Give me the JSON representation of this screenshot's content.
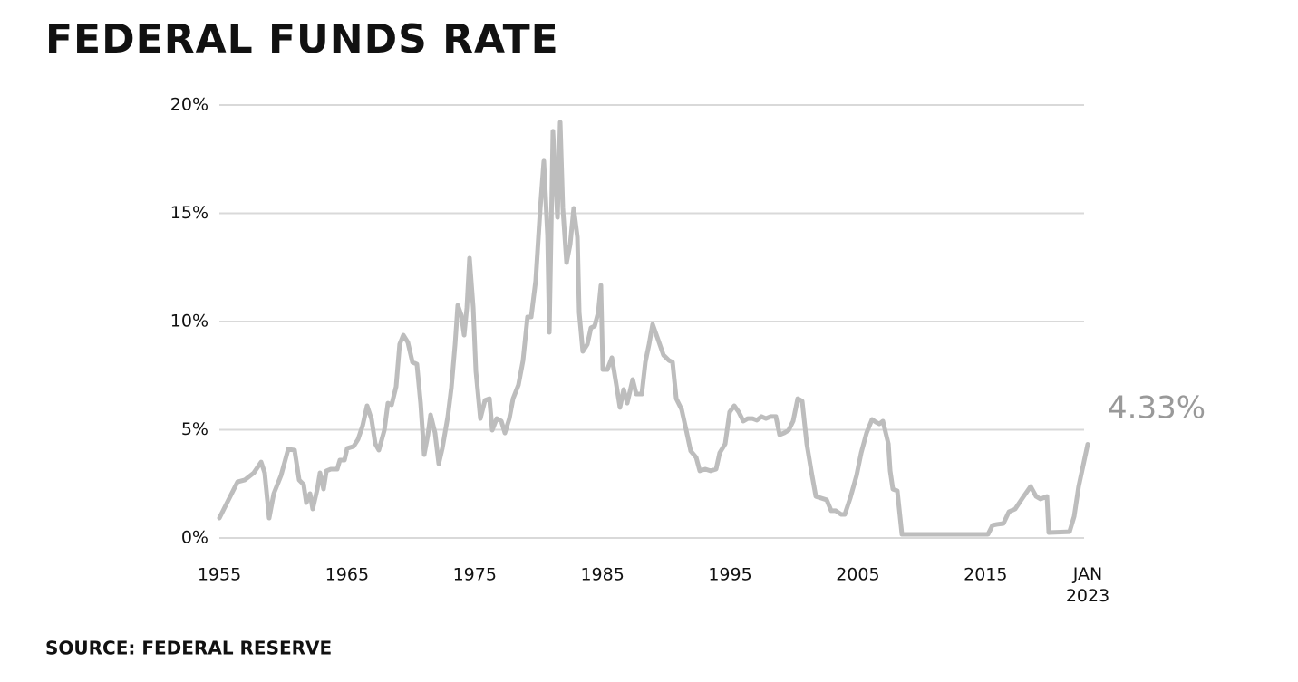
{
  "chart_data": {
    "type": "line",
    "title": "FEDERAL FUNDS RATE",
    "source": "SOURCE: FEDERAL RESERVE",
    "annotation": "4.33%",
    "xlim": [
      1955,
      2023
    ],
    "xticks": [
      1955,
      1965,
      1975,
      1985,
      1995,
      2005,
      2015,
      {
        "value": 2023,
        "label": "JAN 2023"
      }
    ],
    "ylim": [
      0,
      20
    ],
    "yticks": [
      {
        "value": 0,
        "label": "0%"
      },
      {
        "value": 5,
        "label": "5%"
      },
      {
        "value": 10,
        "label": "10%"
      },
      {
        "value": 15,
        "label": "15%"
      },
      {
        "value": 20,
        "label": "20%"
      }
    ],
    "grid": true,
    "color": "#bdbdbd",
    "x": [
      1955,
      1956.42,
      1956.99,
      1957.7,
      1958.27,
      1958.55,
      1958.9,
      1959.26,
      1959.83,
      1960.39,
      1960.89,
      1961.25,
      1961.6,
      1961.81,
      1962.1,
      1962.31,
      1962.67,
      1962.88,
      1963.16,
      1963.38,
      1963.73,
      1964.23,
      1964.44,
      1964.8,
      1965.01,
      1965.51,
      1965.86,
      1966.22,
      1966.57,
      1966.92,
      1967.21,
      1967.49,
      1967.92,
      1968.2,
      1968.49,
      1968.84,
      1969.12,
      1969.41,
      1969.76,
      1970.12,
      1970.47,
      1970.76,
      1971.04,
      1971.33,
      1971.54,
      1971.89,
      1972.18,
      1972.46,
      1972.89,
      1973.17,
      1973.46,
      1973.67,
      1973.95,
      1974.17,
      1974.38,
      1974.59,
      1974.88,
      1975.09,
      1975.44,
      1975.8,
      1976.15,
      1976.37,
      1976.72,
      1977.08,
      1977.36,
      1977.71,
      1978,
      1978.42,
      1978.78,
      1979.13,
      1979.42,
      1979.77,
      1980.13,
      1980.41,
      1980.7,
      1980.84,
      1981.12,
      1981.48,
      1981.69,
      1981.9,
      1982.19,
      1982.47,
      1982.75,
      1983.04,
      1983.18,
      1983.46,
      1983.82,
      1984.1,
      1984.39,
      1984.67,
      1984.88,
      1985.03,
      1985.38,
      1985.74,
      1986.09,
      1986.37,
      1986.66,
      1986.94,
      1987.37,
      1987.65,
      1988.08,
      1988.36,
      1988.65,
      1988.93,
      1989.36,
      1989.78,
      1990.21,
      1990.49,
      1990.78,
      1991.2,
      1991.56,
      1991.91,
      1992.34,
      1992.62,
      1993.05,
      1993.47,
      1993.9,
      1994.18,
      1994.61,
      1994.96,
      1995.32,
      1995.67,
      1996.03,
      1996.38,
      1996.74,
      1997.09,
      1997.45,
      1997.8,
      1998.16,
      1998.58,
      1998.87,
      1999.22,
      1999.58,
      1999.93,
      2000.29,
      2000.64,
      2001,
      2001.35,
      2001.71,
      2002.13,
      2002.56,
      2002.91,
      2003.27,
      2003.69,
      2003.98,
      2004.4,
      2004.9,
      2005.26,
      2005.68,
      2006.11,
      2006.39,
      2006.68,
      2006.96,
      2007.39,
      2007.53,
      2007.74,
      2008.09,
      2008.45,
      2015.19,
      2015.55,
      2015.9,
      2016.4,
      2016.83,
      2017.32,
      2017.89,
      2018.53,
      2018.96,
      2019.31,
      2019.81,
      2019.95,
      2021.58,
      2021.94,
      2022.29,
      2023
    ],
    "values": [
      0.92,
      2.59,
      2.68,
      3.01,
      3.51,
      3.01,
      0.92,
      2.05,
      2.89,
      4.1,
      4.06,
      2.68,
      2.47,
      1.63,
      2.05,
      1.34,
      2.26,
      3.01,
      2.26,
      3.1,
      3.18,
      3.18,
      3.6,
      3.6,
      4.14,
      4.23,
      4.56,
      5.19,
      6.11,
      5.48,
      4.35,
      4.06,
      4.98,
      6.23,
      6.15,
      6.99,
      8.95,
      9.37,
      9.04,
      8.12,
      8.03,
      6.23,
      3.85,
      4.77,
      5.69,
      4.85,
      3.43,
      4.14,
      5.61,
      6.95,
      8.95,
      10.75,
      10.29,
      9.37,
      10.63,
      12.93,
      10.63,
      7.7,
      5.52,
      6.36,
      6.44,
      4.98,
      5.52,
      5.4,
      4.85,
      5.52,
      6.44,
      7.07,
      8.2,
      10.21,
      10.21,
      11.88,
      15.23,
      17.41,
      13.97,
      9.5,
      18.79,
      14.81,
      19.21,
      15.23,
      12.72,
      13.56,
      15.23,
      13.89,
      10.42,
      8.62,
      8.95,
      9.71,
      9.79,
      10.42,
      11.67,
      7.78,
      7.78,
      8.33,
      7.07,
      6.03,
      6.86,
      6.23,
      7.32,
      6.65,
      6.65,
      8.12,
      8.95,
      9.87,
      9.16,
      8.45,
      8.2,
      8.12,
      6.44,
      5.94,
      4.98,
      4.02,
      3.72,
      3.1,
      3.18,
      3.1,
      3.18,
      3.93,
      4.35,
      5.82,
      6.11,
      5.82,
      5.4,
      5.52,
      5.52,
      5.44,
      5.61,
      5.52,
      5.61,
      5.61,
      4.77,
      4.85,
      4.98,
      5.4,
      6.44,
      6.32,
      4.35,
      3.1,
      1.92,
      1.84,
      1.76,
      1.26,
      1.26,
      1.09,
      1.09,
      1.84,
      2.89,
      3.93,
      4.85,
      5.48,
      5.36,
      5.27,
      5.4,
      4.35,
      3.1,
      2.26,
      2.18,
      0.17,
      0.17,
      0.59,
      0.63,
      0.67,
      1.21,
      1.34,
      1.84,
      2.38,
      1.92,
      1.8,
      1.92,
      0.25,
      0.29,
      1,
      2.38,
      4.33
    ]
  }
}
